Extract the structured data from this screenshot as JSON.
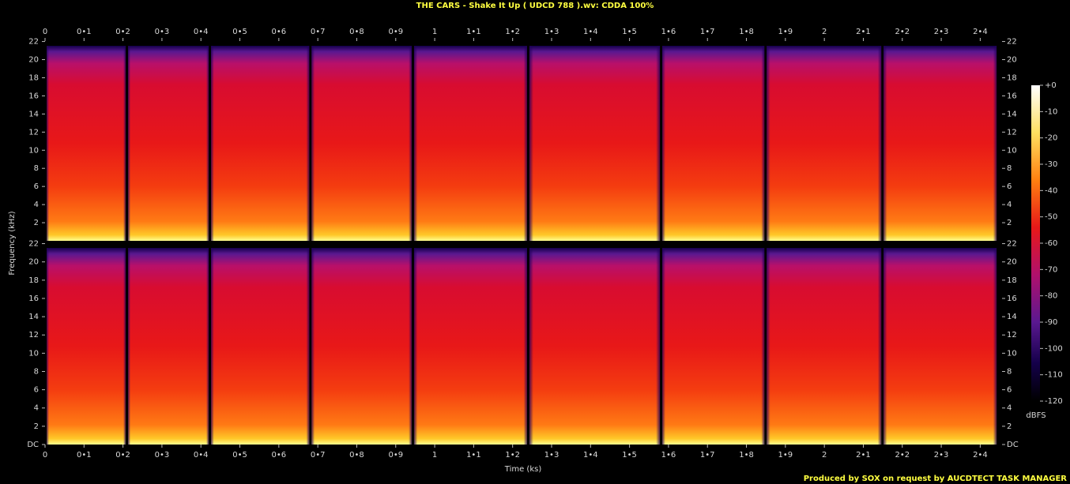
{
  "chart_data": [
    {
      "type": "spectrogram",
      "title": "THE CARS - Shake It Up ( UDCD 788 ).wv: CDDA 100%",
      "ylabel": "Frequency (kHz)",
      "xlim": [
        0,
        2.456
      ],
      "xticks": [
        0,
        {
          "value": 0.1,
          "label": "0•1"
        },
        {
          "value": 0.2,
          "label": "0•2"
        },
        {
          "value": 0.3,
          "label": "0•3"
        },
        {
          "value": 0.4,
          "label": "0•4"
        },
        {
          "value": 0.5,
          "label": "0•5"
        },
        {
          "value": 0.6,
          "label": "0•6"
        },
        {
          "value": 0.7,
          "label": "0•7"
        },
        {
          "value": 0.8,
          "label": "0•8"
        },
        {
          "value": 0.9,
          "label": "0•9"
        },
        1,
        {
          "value": 1.1,
          "label": "1•1"
        },
        {
          "value": 1.2,
          "label": "1•2"
        },
        {
          "value": 1.3,
          "label": "1•3"
        },
        {
          "value": 1.4,
          "label": "1•4"
        },
        {
          "value": 1.5,
          "label": "1•5"
        },
        {
          "value": 1.6,
          "label": "1•6"
        },
        {
          "value": 1.7,
          "label": "1•7"
        },
        {
          "value": 1.8,
          "label": "1•8"
        },
        {
          "value": 1.9,
          "label": "1•9"
        },
        2,
        {
          "value": 2.1,
          "label": "2•1"
        },
        {
          "value": 2.2,
          "label": "2•2"
        },
        {
          "value": 2.3,
          "label": "2•3"
        },
        {
          "value": 2.4,
          "label": "2•4"
        }
      ],
      "ylim": [
        0,
        22.05
      ],
      "yticks": [
        2,
        4,
        6,
        8,
        10,
        12,
        14,
        16,
        18,
        20,
        22
      ],
      "segments": [
        0,
        0.209,
        0.422,
        0.68,
        0.943,
        1.239,
        1.58,
        1.848,
        2.148,
        2.444
      ]
    },
    {
      "type": "spectrogram",
      "xlabel": "Time (ks)",
      "xlim": [
        0,
        2.456
      ],
      "xticks": [
        0,
        {
          "value": 0.1,
          "label": "0•1"
        },
        {
          "value": 0.2,
          "label": "0•2"
        },
        {
          "value": 0.3,
          "label": "0•3"
        },
        {
          "value": 0.4,
          "label": "0•4"
        },
        {
          "value": 0.5,
          "label": "0•5"
        },
        {
          "value": 0.6,
          "label": "0•6"
        },
        {
          "value": 0.7,
          "label": "0•7"
        },
        {
          "value": 0.8,
          "label": "0•8"
        },
        {
          "value": 0.9,
          "label": "0•9"
        },
        1,
        {
          "value": 1.1,
          "label": "1•1"
        },
        {
          "value": 1.2,
          "label": "1•2"
        },
        {
          "value": 1.3,
          "label": "1•3"
        },
        {
          "value": 1.4,
          "label": "1•4"
        },
        {
          "value": 1.5,
          "label": "1•5"
        },
        {
          "value": 1.6,
          "label": "1•6"
        },
        {
          "value": 1.7,
          "label": "1•7"
        },
        {
          "value": 1.8,
          "label": "1•8"
        },
        {
          "value": 1.9,
          "label": "1•9"
        },
        2,
        {
          "value": 2.1,
          "label": "2•1"
        },
        {
          "value": 2.2,
          "label": "2•2"
        },
        {
          "value": 2.3,
          "label": "2•3"
        },
        {
          "value": 2.4,
          "label": "2•4"
        }
      ],
      "ylim": [
        0,
        22.05
      ],
      "yticks": [
        {
          "value": 0,
          "label": "DC"
        },
        2,
        4,
        6,
        8,
        10,
        12,
        14,
        16,
        18,
        20,
        22
      ],
      "segments": [
        0,
        0.209,
        0.422,
        0.68,
        0.943,
        1.239,
        1.58,
        1.848,
        2.148,
        2.444
      ]
    }
  ],
  "colorbar": {
    "label": "dBFS",
    "lim": [
      -120,
      0
    ],
    "ticks": [
      {
        "value": 0,
        "label": "+0"
      },
      -10,
      -20,
      -30,
      -40,
      -50,
      -60,
      -70,
      -80,
      -90,
      -100,
      -110,
      -120
    ]
  },
  "footer": "Produced by SOX on request by AUCDTECT TASK MANAGER"
}
